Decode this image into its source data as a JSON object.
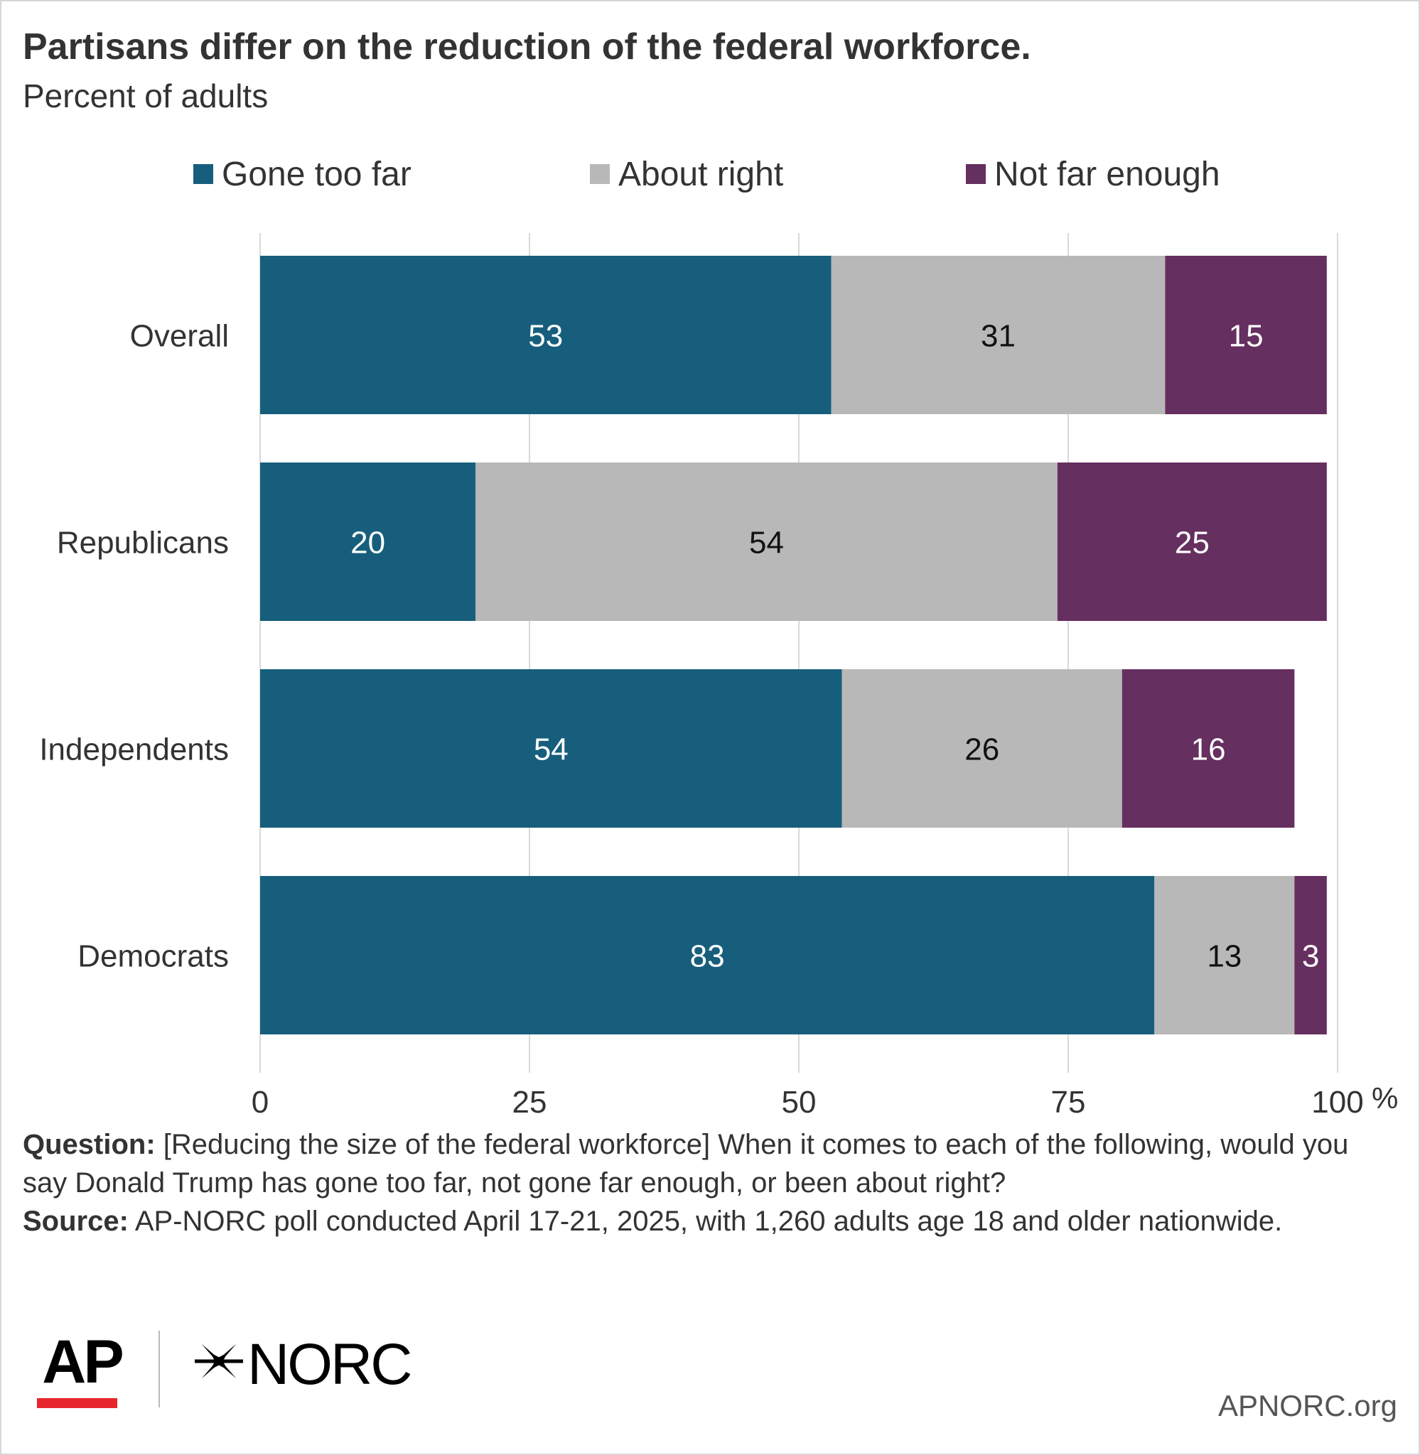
{
  "title": "Partisans differ on the reduction of the federal workforce.",
  "subtitle": "Percent of adults",
  "chart_data": {
    "type": "bar",
    "orientation": "horizontal",
    "stacked": true,
    "categories": [
      "Overall",
      "Republicans",
      "Independents",
      "Democrats"
    ],
    "series": [
      {
        "name": "Gone too far",
        "color": "#175e7c",
        "values": [
          53,
          20,
          54,
          83
        ]
      },
      {
        "name": "About right",
        "color": "#b8b8b8",
        "values": [
          31,
          54,
          26,
          13
        ]
      },
      {
        "name": "Not far enough",
        "color": "#652f5f",
        "values": [
          15,
          25,
          16,
          3
        ]
      }
    ],
    "xlim": [
      0,
      100
    ],
    "xticks": [
      "0",
      "25",
      "50",
      "75",
      "100"
    ],
    "xunit": "%",
    "grid": true,
    "legend_position": "top"
  },
  "note": {
    "question_label": "Question:",
    "question_text": " [Reducing the size of the federal workforce] When it comes to each of the following, would you say Donald Trump has gone too far, not gone far enough, or been about right?",
    "source_label": "Source:",
    "source_text": " AP-NORC poll conducted April 17-21, 2025, with 1,260 adults age 18 and older nationwide."
  },
  "logos": {
    "ap": "AP",
    "norc": "NORC",
    "ap_accent_color": "#e8262d"
  },
  "site": "APNORC.org"
}
